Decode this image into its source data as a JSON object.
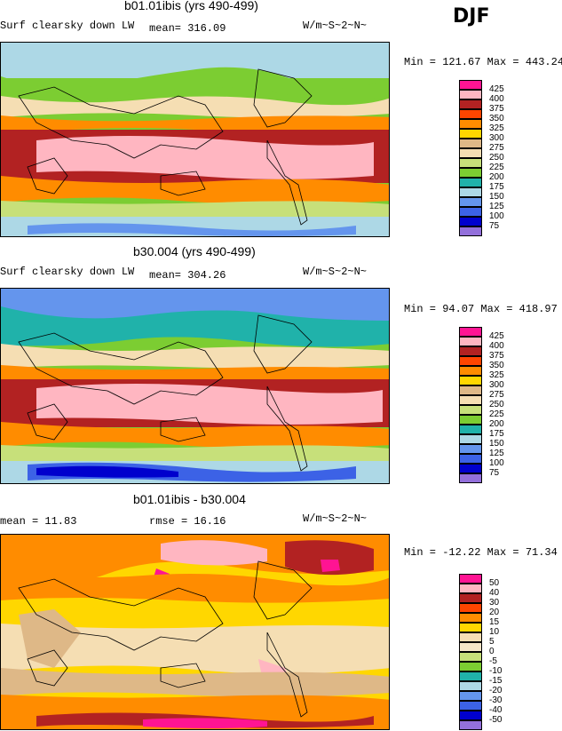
{
  "season": "DJF",
  "panels": [
    {
      "id": "top",
      "title": "b01.01ibis (yrs 490-499)",
      "left_label": "Surf clearsky down LW",
      "mid_label": "mean=  316.09",
      "units": "W/m~S~2~N~",
      "minmax": "Min = 121.67 Max = 443.24",
      "levels": [
        "425",
        "400",
        "375",
        "350",
        "325",
        "300",
        "275",
        "250",
        "225",
        "200",
        "175",
        "150",
        "125",
        "100",
        "75"
      ],
      "colors": [
        "#ff1493",
        "#ffb6c1",
        "#b22222",
        "#ff4500",
        "#ff8c00",
        "#ffd700",
        "#deb887",
        "#f5deb3",
        "#c7e07a",
        "#7ccd32",
        "#20b2aa",
        "#add8e6",
        "#6495ed",
        "#3c62e6",
        "#0000cd",
        "#9370db"
      ]
    },
    {
      "id": "middle",
      "title": "b30.004 (yrs 490-499)",
      "left_label": "Surf clearsky down LW",
      "mid_label": "mean=  304.26",
      "units": "W/m~S~2~N~",
      "minmax": "Min =  94.07 Max = 418.97",
      "levels": [
        "425",
        "400",
        "375",
        "350",
        "325",
        "300",
        "275",
        "250",
        "225",
        "200",
        "175",
        "150",
        "125",
        "100",
        "75"
      ],
      "colors": [
        "#ff1493",
        "#ffb6c1",
        "#b22222",
        "#ff4500",
        "#ff8c00",
        "#ffd700",
        "#deb887",
        "#f5deb3",
        "#c7e07a",
        "#7ccd32",
        "#20b2aa",
        "#add8e6",
        "#6495ed",
        "#3c62e6",
        "#0000cd",
        "#9370db"
      ]
    },
    {
      "id": "bottom",
      "title": "b01.01ibis - b30.004",
      "left_label": "mean =   11.83",
      "mid_label": "rmse =   16.16",
      "units": "W/m~S~2~N~",
      "minmax": "Min = -12.22 Max =  71.34",
      "levels": [
        "50",
        "40",
        "30",
        "20",
        "15",
        "10",
        "5",
        "0",
        "-5",
        "-10",
        "-15",
        "-20",
        "-30",
        "-40",
        "-50"
      ],
      "colors": [
        "#ff1493",
        "#ffb6c1",
        "#b22222",
        "#ff4500",
        "#ff8c00",
        "#ffd700",
        "#f5deb3",
        "#f5e6c8",
        "#c7e07a",
        "#7ccd32",
        "#20b2aa",
        "#add8e6",
        "#6495ed",
        "#3c62e6",
        "#0000cd",
        "#9370db"
      ]
    }
  ],
  "chart_data": [
    {
      "type": "heatmap",
      "title": "b01.01ibis (yrs 490-499)",
      "variable": "Surf clearsky down LW",
      "units": "W/m~S~2~N~",
      "mean": 316.09,
      "min": 121.67,
      "max": 443.24,
      "contour_levels": [
        75,
        100,
        125,
        150,
        175,
        200,
        225,
        250,
        275,
        300,
        325,
        350,
        375,
        400,
        425
      ]
    },
    {
      "type": "heatmap",
      "title": "b30.004 (yrs 490-499)",
      "variable": "Surf clearsky down LW",
      "units": "W/m~S~2~N~",
      "mean": 304.26,
      "min": 94.07,
      "max": 418.97,
      "contour_levels": [
        75,
        100,
        125,
        150,
        175,
        200,
        225,
        250,
        275,
        300,
        325,
        350,
        375,
        400,
        425
      ]
    },
    {
      "type": "heatmap",
      "title": "b01.01ibis - b30.004",
      "units": "W/m~S~2~N~",
      "mean": 11.83,
      "rmse": 16.16,
      "min": -12.22,
      "max": 71.34,
      "contour_levels": [
        -50,
        -40,
        -30,
        -20,
        -15,
        -10,
        -5,
        0,
        5,
        10,
        15,
        20,
        30,
        40,
        50
      ]
    }
  ]
}
